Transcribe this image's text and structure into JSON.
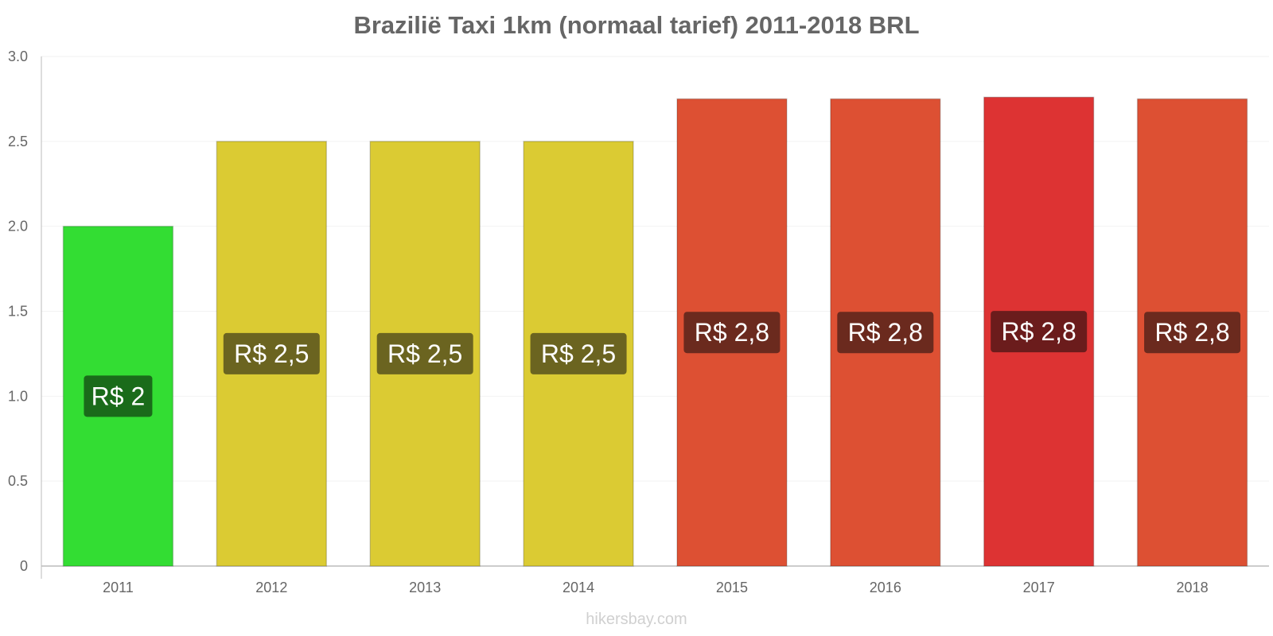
{
  "chart_data": {
    "type": "bar",
    "title": "Brazilië Taxi 1km (normaal tarief) 2011-2018 BRL",
    "xlabel": "",
    "ylabel": "",
    "categories": [
      "2011",
      "2012",
      "2013",
      "2014",
      "2015",
      "2016",
      "2017",
      "2018"
    ],
    "values": [
      2.0,
      2.5,
      2.5,
      2.5,
      2.75,
      2.75,
      2.76,
      2.75
    ],
    "data_labels": [
      "R$ 2",
      "R$ 2,5",
      "R$ 2,5",
      "R$ 2,5",
      "R$ 2,8",
      "R$ 2,8",
      "R$ 2,8",
      "R$ 2,8"
    ],
    "bar_colors": [
      "#33dd33",
      "#dbcb33",
      "#dbcb33",
      "#dbcb33",
      "#dd5033",
      "#dd5033",
      "#dd3333",
      "#dd5033"
    ],
    "label_bg_colors": [
      "#1a6b1a",
      "#6b6420",
      "#6b6420",
      "#6b6420",
      "#6b2a1e",
      "#6b2a1e",
      "#6b1c1c",
      "#6b2a1e"
    ],
    "ylim": [
      0,
      3.0
    ],
    "y_ticks": [
      "0",
      "0.5",
      "1.0",
      "1.5",
      "2.0",
      "2.5",
      "3.0"
    ],
    "grid": true,
    "legend": "none"
  },
  "watermark": "hikersbay.com"
}
